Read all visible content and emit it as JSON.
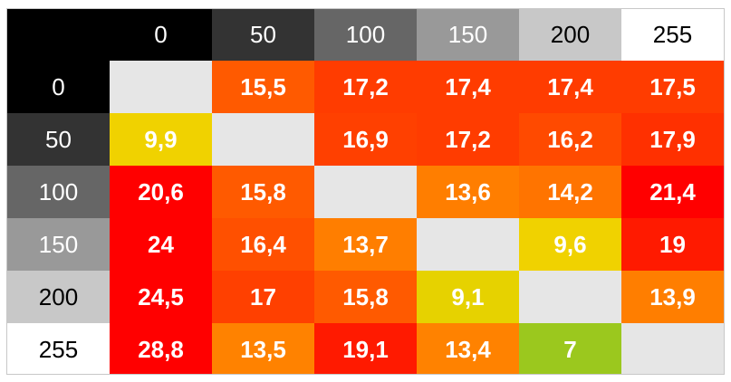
{
  "chart_data": {
    "type": "heatmap",
    "title": "",
    "row_labels": [
      "0",
      "50",
      "100",
      "150",
      "200",
      "255"
    ],
    "column_labels": [
      "0",
      "50",
      "100",
      "150",
      "200",
      "255"
    ],
    "header_colors": {
      "corner": "#000000",
      "labels": [
        "#000000",
        "#333333",
        "#666666",
        "#999999",
        "#c8c8c8",
        "#ffffff"
      ],
      "label_text": [
        "#ffffff",
        "#ffffff",
        "#ffffff",
        "#ffffff",
        "#000000",
        "#000000"
      ]
    },
    "values": [
      [
        null,
        "15,5",
        "17,2",
        "17,4",
        "17,4",
        "17,5"
      ],
      [
        "9,9",
        null,
        "16,9",
        "17,2",
        "16,2",
        "17,9"
      ],
      [
        "20,6",
        "15,8",
        null,
        "13,6",
        "14,2",
        "21,4"
      ],
      [
        "24",
        "16,4",
        "13,7",
        null,
        "9,6",
        "19"
      ],
      [
        "24,5",
        "17",
        "15,8",
        "9,1",
        null,
        "13,9"
      ],
      [
        "28,8",
        "13,5",
        "19,1",
        "13,4",
        "7",
        null
      ]
    ],
    "cell_colors": [
      [
        "#e6e6e6",
        "#ff5a00",
        "#ff3c00",
        "#ff3c00",
        "#ff3c00",
        "#ff3c00"
      ],
      [
        "#f0d200",
        "#e6e6e6",
        "#ff4000",
        "#ff3c00",
        "#ff4a00",
        "#ff3000"
      ],
      [
        "#ff0000",
        "#ff5a00",
        "#e6e6e6",
        "#ff7e00",
        "#ff7400",
        "#ff0000"
      ],
      [
        "#ff0000",
        "#ff5000",
        "#ff7e00",
        "#e6e6e6",
        "#f0d200",
        "#ff1a00"
      ],
      [
        "#ff0000",
        "#ff4000",
        "#ff5a00",
        "#e6d200",
        "#e6e6e6",
        "#ff7e00"
      ],
      [
        "#ff0000",
        "#ff8200",
        "#ff1a00",
        "#ff8200",
        "#9bc81e",
        "#e6e6e6"
      ]
    ]
  }
}
